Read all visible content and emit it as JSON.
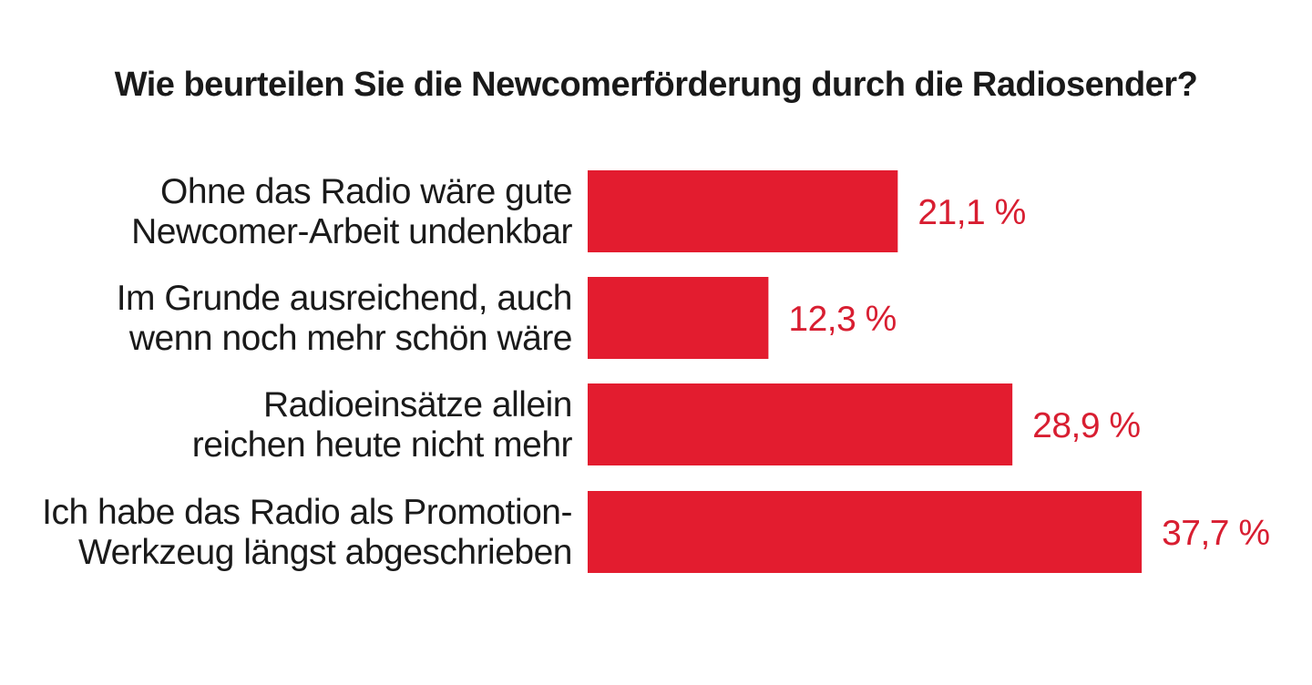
{
  "chart_data": {
    "type": "bar",
    "orientation": "horizontal",
    "title": "Wie beurteilen Sie die Newcomerförderung durch die Radiosender?",
    "categories": [
      [
        "Ohne das Radio wäre gute",
        "Newcomer-Arbeit undenkbar"
      ],
      [
        "Im Grunde ausreichend, auch",
        "wenn noch mehr schön wäre"
      ],
      [
        "Radioeinsätze allein",
        "reichen heute nicht mehr"
      ],
      [
        "Ich habe das Radio als Promotion-",
        "Werkzeug längst abgeschrieben"
      ]
    ],
    "values": [
      21.1,
      12.3,
      28.9,
      37.7
    ],
    "value_labels": [
      "21,1 %",
      "12,3 %",
      "28,9 %",
      "37,7 %"
    ],
    "unit": "%",
    "grid": false,
    "legend": "none"
  },
  "colors": {
    "bar": "#e31c2f",
    "value_text": "#d81e31",
    "text": "#1a1a1a"
  }
}
